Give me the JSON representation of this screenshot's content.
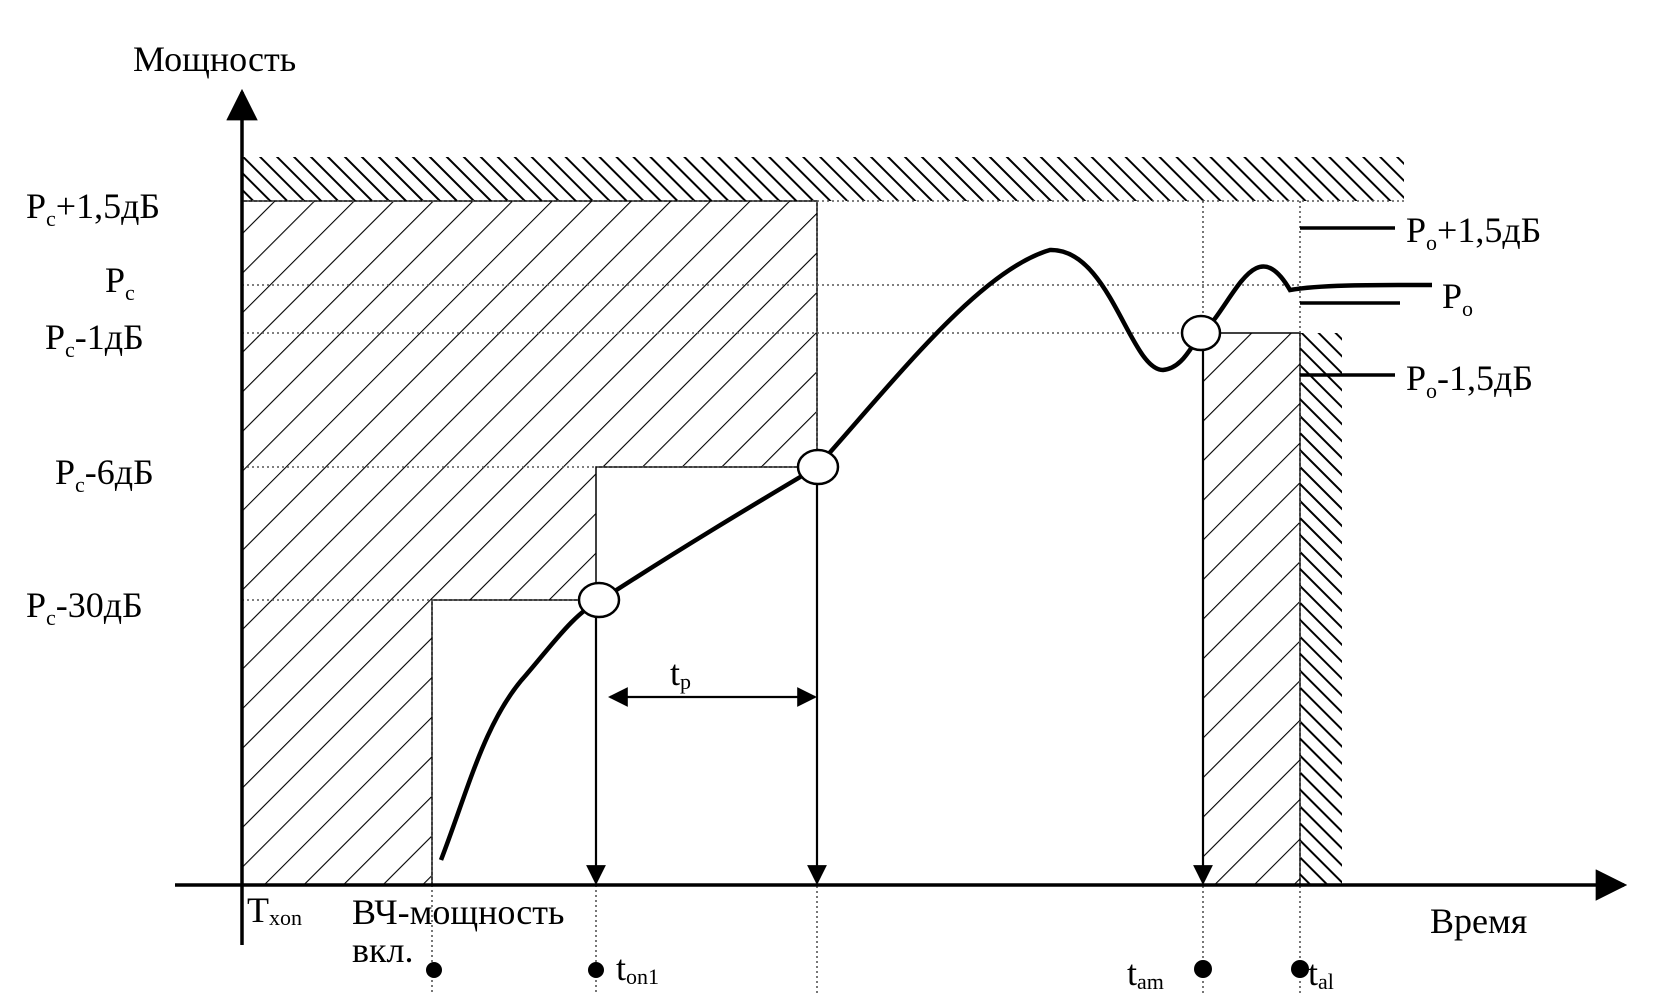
{
  "axes": {
    "y_title": "Мощность",
    "x_title": "Время"
  },
  "y_labels": {
    "pc_plus_1_5": {
      "main": "P",
      "sub": "c",
      "tail": "+1,5дБ"
    },
    "pc": {
      "main": "P",
      "sub": "c",
      "tail": ""
    },
    "pc_minus_1": {
      "main": "P",
      "sub": "c",
      "tail": "-1дБ"
    },
    "pc_minus_6": {
      "main": "P",
      "sub": "c",
      "tail": "-6дБ"
    },
    "pc_minus_30": {
      "main": "P",
      "sub": "c",
      "tail": "-30дБ"
    }
  },
  "right_labels": {
    "po_plus_1_5": {
      "main": "P",
      "sub": "o",
      "tail": "+1,5дБ"
    },
    "po": {
      "main": "P",
      "sub": "o",
      "tail": ""
    },
    "po_minus_1_5": {
      "main": "P",
      "sub": "o",
      "tail": "-1,5дБ"
    }
  },
  "time_labels": {
    "txon": {
      "main": "T",
      "sub": "xon"
    },
    "rf_power_on_line1": "ВЧ-мощность",
    "rf_power_on_line2": "вкл.",
    "ton1": {
      "main": "t",
      "sub": "on1"
    },
    "tam": {
      "main": "t",
      "sub": "am"
    },
    "tal": {
      "main": "t",
      "sub": "al"
    },
    "tp": {
      "main": "t",
      "sub": "p"
    }
  }
}
